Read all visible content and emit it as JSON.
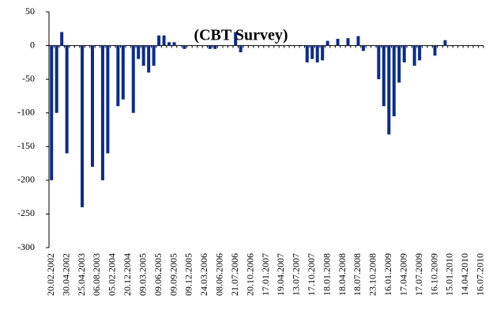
{
  "chart_data": {
    "type": "bar",
    "title": "(CBT Survey)",
    "categories": [
      "20.02.2002",
      null,
      null,
      "30.04.2002",
      null,
      null,
      "25.04.2003",
      null,
      null,
      "06.08.2003",
      null,
      null,
      "05.02.2004",
      null,
      null,
      "20.12.2004",
      null,
      null,
      "09.03.2005",
      null,
      null,
      "09.06.2005",
      null,
      null,
      "09.09.2005",
      null,
      null,
      "09.12.2005",
      null,
      null,
      "24.03.2006",
      null,
      null,
      "08.06.2006",
      null,
      null,
      "21.07.2006",
      null,
      null,
      "20.10.2006",
      null,
      null,
      "17.01.2007",
      null,
      null,
      "19.04.2007",
      null,
      null,
      "13.07.2007",
      null,
      null,
      "17.10.2007",
      null,
      null,
      "18.01.2008",
      null,
      null,
      "18.04.2008",
      null,
      null,
      "18.07.2008",
      null,
      null,
      "23.10.2008",
      null,
      null,
      "16.01.2009",
      null,
      null,
      "17.04.2009",
      null,
      null,
      "17.07.2009",
      null,
      null,
      "16.10.2009",
      null,
      null,
      "15.01.2010",
      null,
      null,
      "14.04.2010",
      null,
      null,
      "16.07.2010"
    ],
    "values": [
      -200,
      -100,
      20,
      -160,
      null,
      null,
      -240,
      null,
      -180,
      null,
      -200,
      -160,
      null,
      -90,
      -80,
      null,
      -100,
      -20,
      -30,
      -40,
      -30,
      15,
      15,
      5,
      5,
      null,
      -5,
      null,
      null,
      null,
      null,
      -5,
      -5,
      null,
      null,
      null,
      20,
      -10,
      null,
      null,
      null,
      null,
      null,
      null,
      null,
      null,
      null,
      null,
      null,
      null,
      -25,
      -20,
      -25,
      -22,
      7,
      null,
      10,
      null,
      11,
      null,
      14,
      -8,
      null,
      null,
      -50,
      -90,
      -132,
      -105,
      -55,
      -25,
      null,
      -30,
      -22,
      null,
      null,
      -15,
      null,
      8,
      null,
      null,
      null,
      null,
      null,
      null,
      null
    ],
    "color": "#0b2c8a",
    "ylim": [
      -300,
      50
    ],
    "yticks": [
      -300,
      -250,
      -200,
      -150,
      -100,
      -50,
      0,
      50
    ],
    "grid": false
  }
}
